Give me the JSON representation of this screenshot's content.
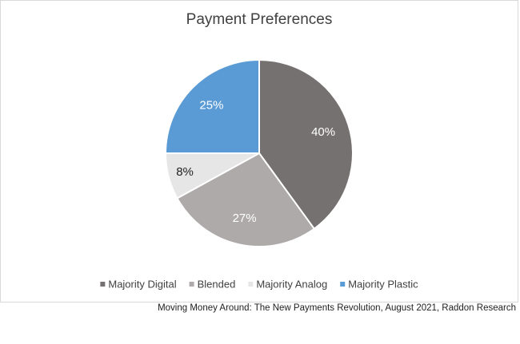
{
  "chart_data": {
    "type": "pie",
    "title": "Payment Preferences",
    "categories": [
      "Majority Digital",
      "Blended",
      "Majority Analog",
      "Majority Plastic"
    ],
    "values": [
      40,
      27,
      8,
      25
    ],
    "value_labels": [
      "40%",
      "27%",
      "8%",
      "25%"
    ],
    "colors": [
      "#767171",
      "#aeaaaa",
      "#e7e6e6",
      "#5b9bd5"
    ],
    "legend": "bottom",
    "source": "Moving Money Around: The New Payments Revolution, August 2021, Raddon Research"
  }
}
